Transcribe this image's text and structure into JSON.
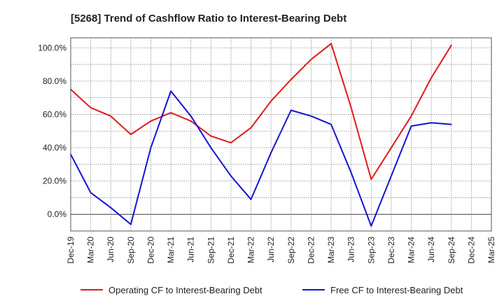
{
  "chart_data": {
    "type": "line",
    "title": "[5268]  Trend of Cashflow Ratio to Interest-Bearing Debt",
    "xlabel": "",
    "ylabel": "",
    "categories": [
      "Dec-19",
      "Mar-20",
      "Jun-20",
      "Sep-20",
      "Dec-20",
      "Mar-21",
      "Jun-21",
      "Sep-21",
      "Dec-21",
      "Mar-22",
      "Jun-22",
      "Sep-22",
      "Dec-22",
      "Mar-23",
      "Jun-23",
      "Sep-23",
      "Dec-23",
      "Mar-24",
      "Jun-24",
      "Sep-24",
      "Dec-24",
      "Mar-25"
    ],
    "ylim": [
      -10,
      106
    ],
    "yticks": [
      0,
      20,
      40,
      60,
      80,
      100
    ],
    "ytick_labels": [
      "0.0%",
      "20.0%",
      "40.0%",
      "60.0%",
      "80.0%",
      "100.0%"
    ],
    "grid": true,
    "legend_position": "bottom",
    "series": [
      {
        "name": "Operating CF to Interest-Bearing Debt",
        "color": "#e01b1b",
        "values": [
          75,
          64,
          59,
          48,
          56,
          61,
          56,
          47,
          43,
          52,
          68,
          81,
          93,
          102.5,
          64,
          21,
          40,
          59,
          82,
          101.5,
          null,
          null
        ]
      },
      {
        "name": "Free CF to Interest-Bearing Debt",
        "color": "#1414d6",
        "values": [
          36,
          13,
          4,
          -6,
          40,
          74,
          59,
          40,
          23,
          9,
          37,
          62.5,
          59,
          54,
          25,
          -7,
          23,
          53,
          55,
          54,
          null,
          null
        ]
      }
    ]
  }
}
